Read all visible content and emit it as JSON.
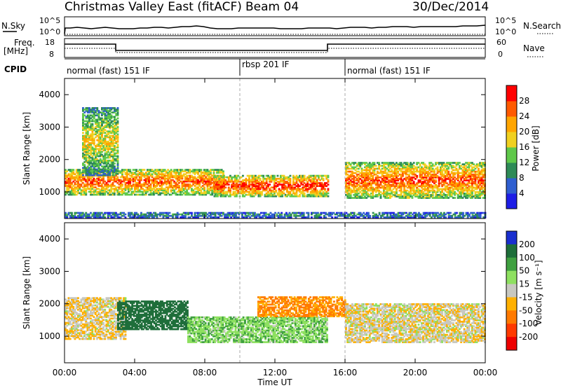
{
  "header": {
    "radar": "Christmas Valley East (fitACF)",
    "beam": "Beam 04",
    "date": "30/Dec/2014"
  },
  "strip_labels": {
    "nsky": "N.Sky",
    "nsky_scale_top": "10^5",
    "nsky_scale_bottom": "10^0",
    "nsearch": "N.Search",
    "nsearch_scale_top": "10^5",
    "nsearch_scale_bottom": "10^0",
    "freq_line1": "Freq.",
    "freq_line2": "[MHz]",
    "freq_ticks": [
      "18",
      "8"
    ],
    "nave": "Nave",
    "nave_ticks": [
      "60",
      "0"
    ],
    "cpid": "CPID"
  },
  "cpid_segments": [
    {
      "label": "normal (fast) 151 IF",
      "start_hour": 0
    },
    {
      "label": "rbsp 201 IF",
      "start_hour": 10
    },
    {
      "label": "normal (fast) 151 IF",
      "start_hour": 16
    }
  ],
  "axes": {
    "x_ticks": [
      "00:00",
      "04:00",
      "08:00",
      "12:00",
      "16:00",
      "20:00",
      "00:00"
    ],
    "x_label": "Time UT",
    "y_label": "Slant Range [km]",
    "y_ticks": [
      "1000",
      "2000",
      "3000",
      "4000"
    ]
  },
  "colorbars": {
    "power": {
      "label": "Power [dB]",
      "ticks": [
        "4",
        "8",
        "12",
        "16",
        "20",
        "24",
        "28"
      ],
      "colors": [
        "#1e1ee6",
        "#2f5fd0",
        "#2e8b57",
        "#5fc84a",
        "#f0d020",
        "#ffa500",
        "#ff5a00",
        "#ff0000"
      ]
    },
    "velocity": {
      "label": "Velocity [m s⁻¹]",
      "ticks": [
        "200",
        "100",
        "50",
        "15",
        "-15",
        "-50",
        "-100",
        "-200"
      ],
      "colors": [
        "#1a2fcf",
        "#1e6e3a",
        "#3fa040",
        "#8ee060",
        "#c8c8c0",
        "#ffb000",
        "#ff7a00",
        "#ff3a00",
        "#ee0000"
      ]
    }
  },
  "chart_data": [
    {
      "type": "heatmap",
      "title": "Christmas Valley East (fitACF) Beam 04 30/Dec/2014",
      "xlabel": "Time UT",
      "ylabel": "Slant Range [km]",
      "xlim_hours": [
        0,
        24
      ],
      "ylim_km": [
        180,
        4500
      ],
      "colorbar": "Power [dB]",
      "colorbar_range": [
        0,
        30
      ],
      "echo_regions": [
        {
          "t_start": 0.0,
          "t_end": 9.0,
          "r_min": 900,
          "r_max": 1700,
          "mean_db": 26
        },
        {
          "t_start": 1.0,
          "t_end": 3.0,
          "r_min": 1500,
          "r_max": 3600,
          "mean_db": 18
        },
        {
          "t_start": 8.5,
          "t_end": 15.0,
          "r_min": 850,
          "r_max": 1500,
          "mean_db": 28
        },
        {
          "t_start": 16.0,
          "t_end": 24.0,
          "r_min": 800,
          "r_max": 1900,
          "mean_db": 26
        },
        {
          "t_start": 0.0,
          "t_end": 24.0,
          "r_min": 200,
          "r_max": 350,
          "mean_db": 10
        }
      ]
    },
    {
      "type": "heatmap",
      "title": "",
      "xlabel": "Time UT",
      "ylabel": "Slant Range [km]",
      "xlim_hours": [
        0,
        24
      ],
      "ylim_km": [
        180,
        4500
      ],
      "colorbar": "Velocity [m s⁻¹]",
      "colorbar_range": [
        -200,
        200
      ],
      "echo_regions": [
        {
          "t_start": 0.0,
          "t_end": 3.5,
          "r_min": 900,
          "r_max": 2200,
          "mean_velocity": -10
        },
        {
          "t_start": 3.0,
          "t_end": 7.0,
          "r_min": 1200,
          "r_max": 2100,
          "mean_velocity": 150
        },
        {
          "t_start": 7.0,
          "t_end": 15.0,
          "r_min": 800,
          "r_max": 1600,
          "mean_velocity": 40
        },
        {
          "t_start": 11.0,
          "t_end": 16.0,
          "r_min": 1600,
          "r_max": 2200,
          "mean_velocity": -60
        },
        {
          "t_start": 16.0,
          "t_end": 24.0,
          "r_min": 800,
          "r_max": 2000,
          "mean_velocity": -5
        }
      ]
    }
  ]
}
